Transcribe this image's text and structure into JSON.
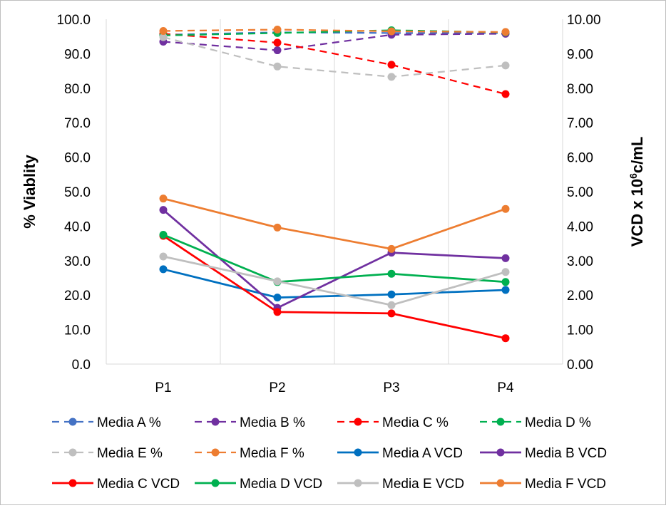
{
  "chart_data": {
    "type": "line",
    "title": "",
    "categories": [
      "P1",
      "P2",
      "P3",
      "P4"
    ],
    "y_left": {
      "label": "% Viablity",
      "min": 0,
      "max": 100,
      "step": 10,
      "tick_labels": [
        "0.0",
        "10.0",
        "20.0",
        "30.0",
        "40.0",
        "50.0",
        "60.0",
        "70.0",
        "80.0",
        "90.0",
        "100.0"
      ]
    },
    "y_right": {
      "label_main": "VCD x 10",
      "label_sup": "6",
      "label_end": "c/mL",
      "min": 0,
      "max": 10,
      "step": 1,
      "tick_labels": [
        "0.00",
        "1.00",
        "2.00",
        "3.00",
        "4.00",
        "5.00",
        "6.00",
        "7.00",
        "8.00",
        "9.00",
        "10.00"
      ]
    },
    "grid": "vertical",
    "legend_position": "bottom",
    "series": [
      {
        "name": "Media A %",
        "axis": "left",
        "style": "dashed",
        "color": "#4472C4",
        "values": [
          95.5,
          96.2,
          96.0,
          96.0
        ]
      },
      {
        "name": "Media B %",
        "axis": "left",
        "style": "dashed",
        "color": "#7030A0",
        "values": [
          93.5,
          91.0,
          95.5,
          95.8
        ]
      },
      {
        "name": "Media C %",
        "axis": "left",
        "style": "dashed",
        "color": "#FF0000",
        "values": [
          95.8,
          93.2,
          86.8,
          78.3
        ]
      },
      {
        "name": "Media D %",
        "axis": "left",
        "style": "dashed",
        "color": "#00B050",
        "values": [
          95.3,
          96.0,
          96.8,
          96.2
        ]
      },
      {
        "name": "Media E %",
        "axis": "left",
        "style": "dashed",
        "color": "#BFBFBF",
        "values": [
          94.8,
          86.3,
          83.3,
          86.6
        ]
      },
      {
        "name": "Media F %",
        "axis": "left",
        "style": "dashed",
        "color": "#ED7D31",
        "values": [
          96.6,
          97.0,
          96.5,
          96.3
        ]
      },
      {
        "name": "Media A VCD",
        "axis": "right",
        "style": "solid",
        "color": "#0070C0",
        "values": [
          2.75,
          1.93,
          2.02,
          2.15
        ]
      },
      {
        "name": "Media B VCD",
        "axis": "right",
        "style": "solid",
        "color": "#7030A0",
        "values": [
          4.47,
          1.63,
          3.23,
          3.07
        ]
      },
      {
        "name": "Media C VCD",
        "axis": "right",
        "style": "solid",
        "color": "#FF0000",
        "values": [
          3.72,
          1.51,
          1.47,
          0.75
        ]
      },
      {
        "name": "Media D VCD",
        "axis": "right",
        "style": "solid",
        "color": "#00B050",
        "values": [
          3.75,
          2.38,
          2.62,
          2.38
        ]
      },
      {
        "name": "Media E VCD",
        "axis": "right",
        "style": "solid",
        "color": "#BFBFBF",
        "values": [
          3.12,
          2.4,
          1.71,
          2.67
        ]
      },
      {
        "name": "Media F VCD",
        "axis": "right",
        "style": "solid",
        "color": "#ED7D31",
        "values": [
          4.8,
          3.96,
          3.34,
          4.5
        ]
      }
    ]
  }
}
